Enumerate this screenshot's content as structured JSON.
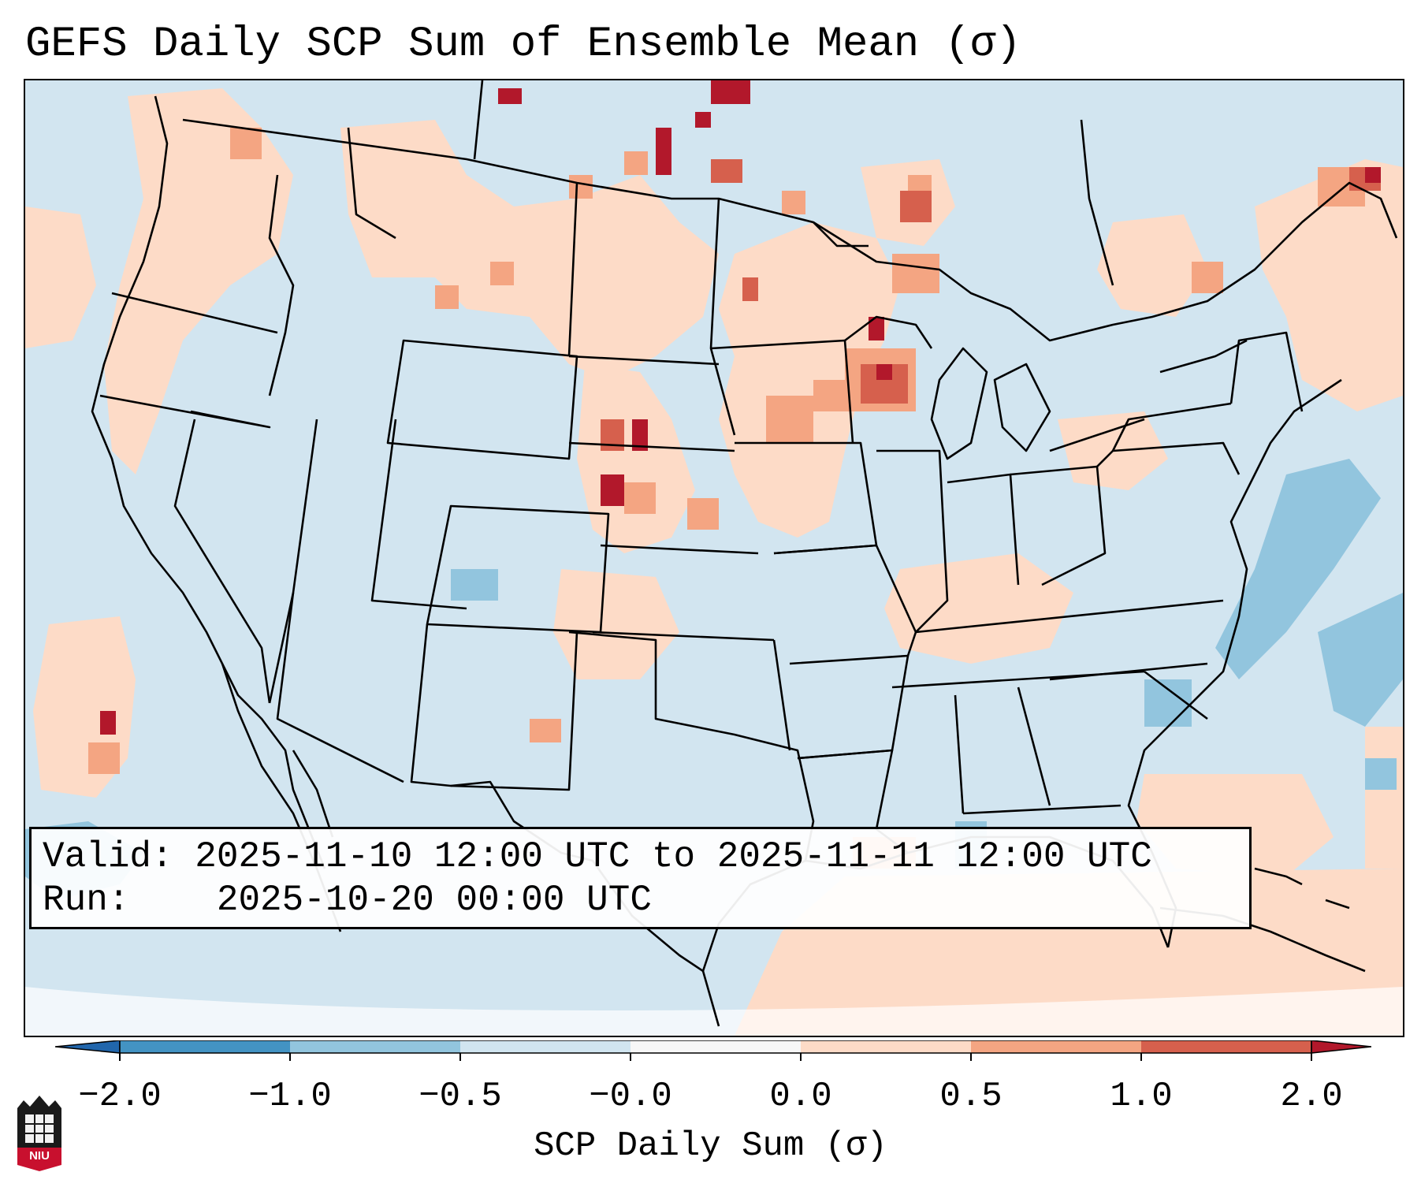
{
  "title": "GEFS Daily SCP Sum of Ensemble Mean (σ)",
  "info": {
    "valid_label": "Valid:",
    "valid_value": "2025-11-10 12:00 UTC to 2025-11-11 12:00 UTC",
    "run_label": "Run:",
    "run_value": "2025-10-20 00:00 UTC"
  },
  "colorbar": {
    "label": "SCP Daily Sum (σ)",
    "ticks": [
      "−2.0",
      "−1.0",
      "−0.5",
      "−0.0",
      "0.0",
      "0.5",
      "1.0",
      "2.0"
    ],
    "colors": {
      "below": "#2166ac",
      "bin_neg2_neg1": "#4393c3",
      "bin_neg1_neg05": "#92c5de",
      "bin_neg05_0": "#d1e5f0",
      "bin_0": "#f7f7f7",
      "bin_0_05": "#fddbc7",
      "bin_05_1": "#f4a582",
      "bin_1_2": "#d6604d",
      "above": "#b2182b"
    }
  },
  "logo": {
    "text": "NIU"
  }
}
